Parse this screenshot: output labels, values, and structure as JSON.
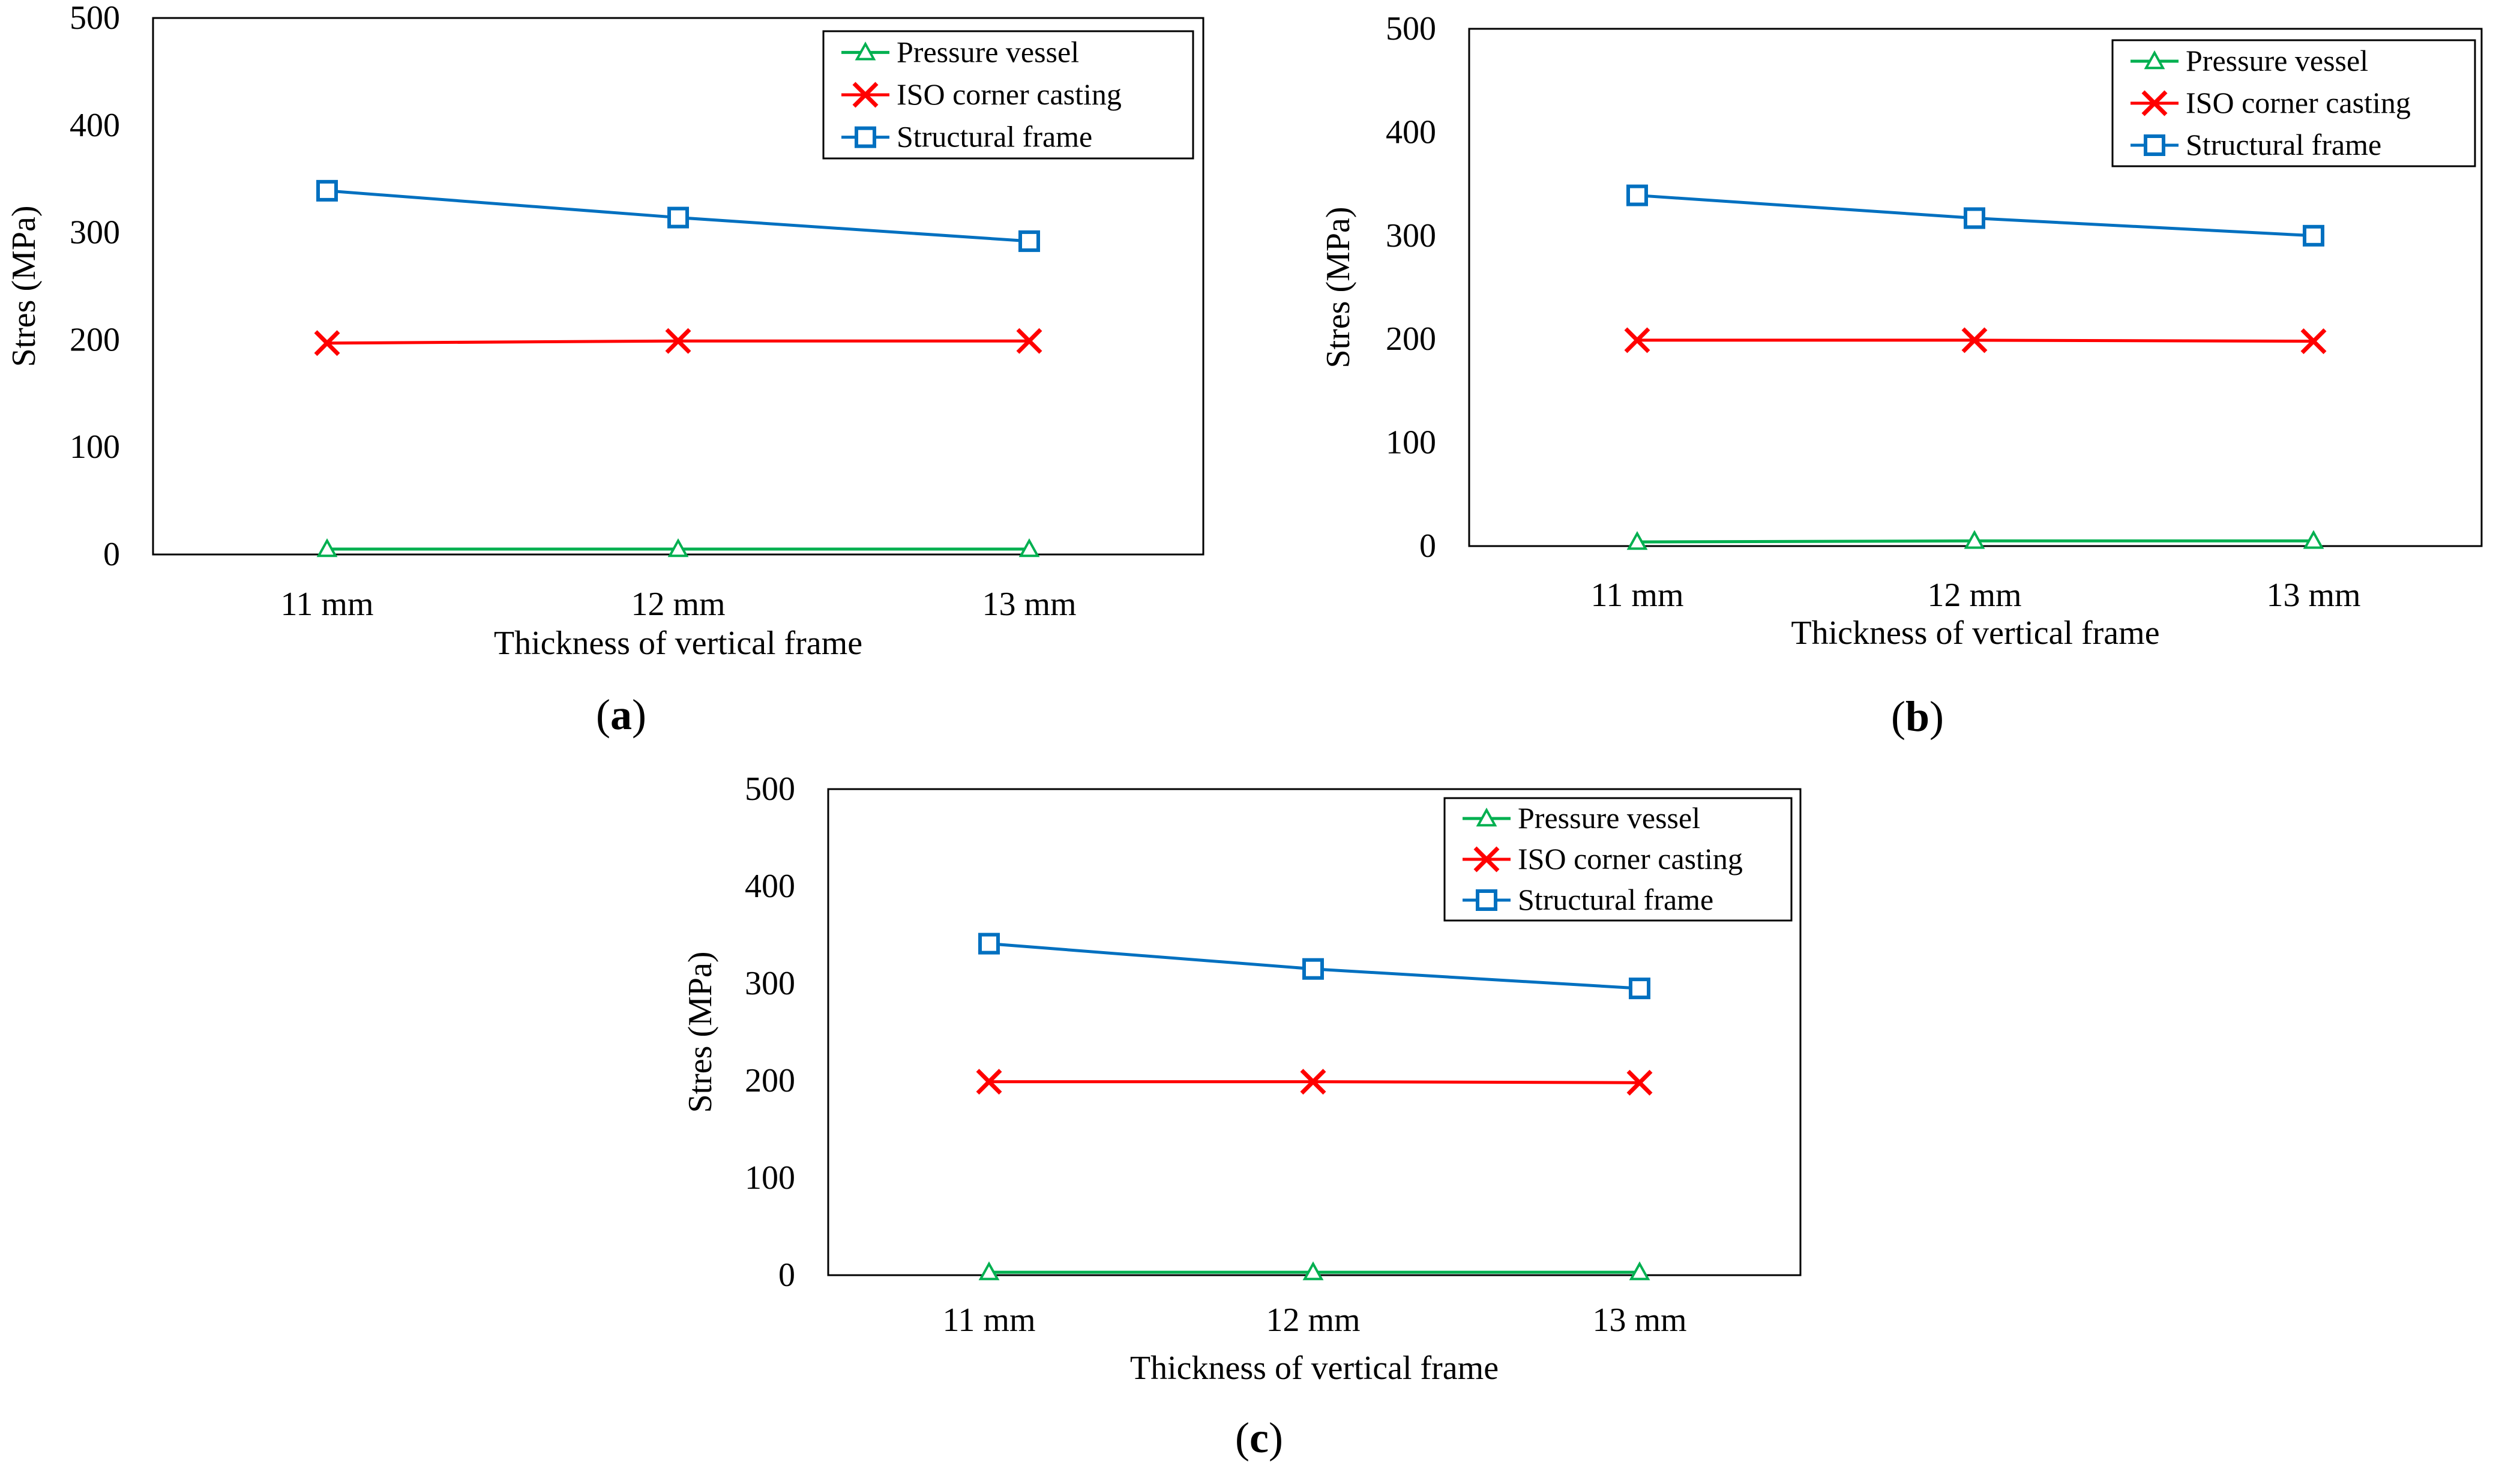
{
  "figure": {
    "panel_labels": [
      "a",
      "b",
      "c"
    ]
  },
  "colors": {
    "pressure_vessel": "#00b050",
    "iso_corner": "#ff0000",
    "structural_frame": "#0070c0"
  },
  "chart_data": [
    {
      "type": "line",
      "panel": "a",
      "categories": [
        "11 mm",
        "12 mm",
        "13 mm"
      ],
      "xlabel": "Thickness of vertical frame",
      "ylabel": "Stres (MPa)",
      "ylim": [
        0,
        500
      ],
      "yticks": [
        0,
        100,
        200,
        300,
        400,
        500
      ],
      "series": [
        {
          "name": "Pressure vessel",
          "key": "pressure_vessel",
          "marker": "triangle",
          "values": [
            5,
            5,
            5
          ]
        },
        {
          "name": "ISO corner casting",
          "key": "iso_corner",
          "marker": "x",
          "values": [
            197,
            199,
            199
          ]
        },
        {
          "name": "Structural frame",
          "key": "structural_frame",
          "marker": "square",
          "values": [
            339,
            314,
            292
          ]
        }
      ]
    },
    {
      "type": "line",
      "panel": "b",
      "categories": [
        "11 mm",
        "12 mm",
        "13 mm"
      ],
      "xlabel": "Thickness of vertical frame",
      "ylabel": "Stres (MPa)",
      "ylim": [
        0,
        500
      ],
      "yticks": [
        0,
        100,
        200,
        300,
        400,
        500
      ],
      "series": [
        {
          "name": "Pressure vessel",
          "key": "pressure_vessel",
          "marker": "triangle",
          "values": [
            4,
            5,
            5
          ]
        },
        {
          "name": "ISO corner casting",
          "key": "iso_corner",
          "marker": "x",
          "values": [
            199,
            199,
            198
          ]
        },
        {
          "name": "Structural frame",
          "key": "structural_frame",
          "marker": "square",
          "values": [
            339,
            317,
            300
          ]
        }
      ]
    },
    {
      "type": "line",
      "panel": "c",
      "categories": [
        "11 mm",
        "12 mm",
        "13 mm"
      ],
      "xlabel": "Thickness of vertical frame",
      "ylabel": "Stres (MPa)",
      "ylim": [
        0,
        500
      ],
      "yticks": [
        0,
        100,
        200,
        300,
        400,
        500
      ],
      "series": [
        {
          "name": "Pressure vessel",
          "key": "pressure_vessel",
          "marker": "triangle",
          "values": [
            3,
            3,
            3
          ]
        },
        {
          "name": "ISO corner casting",
          "key": "iso_corner",
          "marker": "x",
          "values": [
            199,
            199,
            198
          ]
        },
        {
          "name": "Structural frame",
          "key": "structural_frame",
          "marker": "square",
          "values": [
            341,
            315,
            295
          ]
        }
      ]
    }
  ]
}
